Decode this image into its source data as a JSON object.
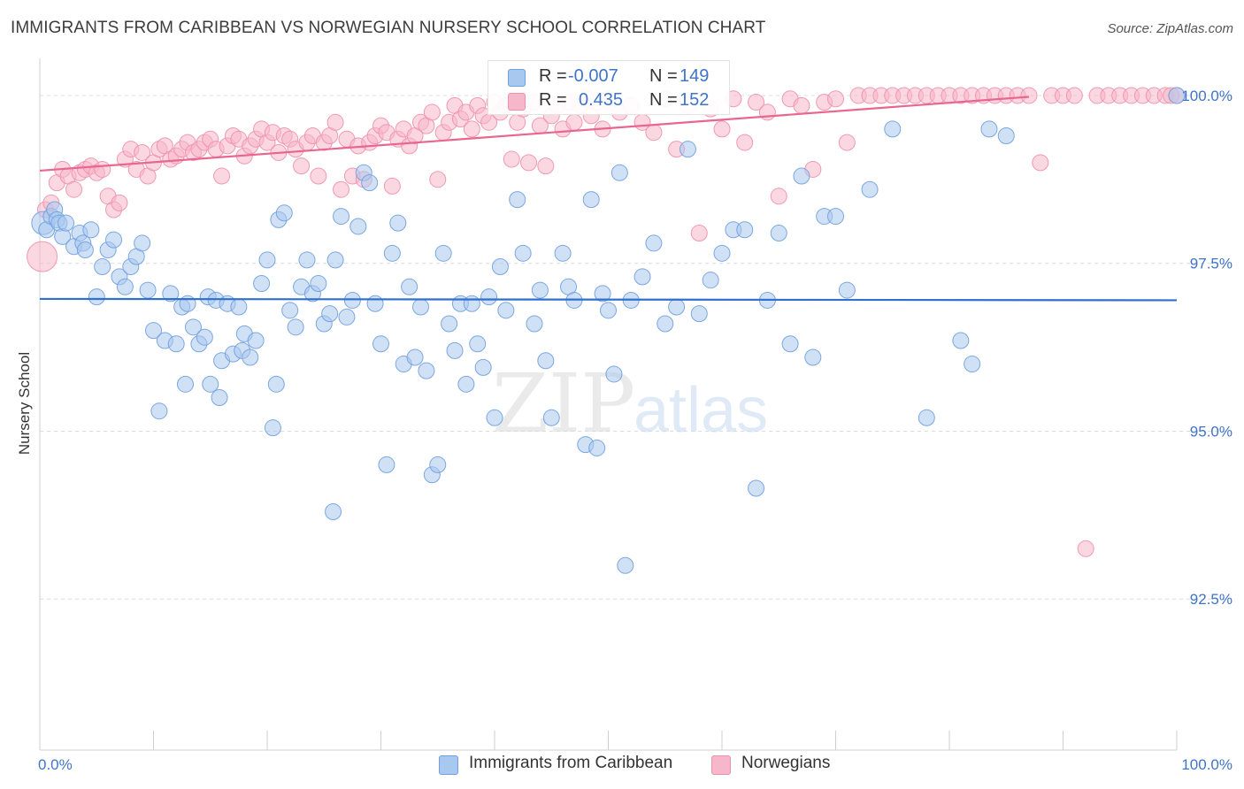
{
  "title": "IMMIGRANTS FROM CARIBBEAN VS NORWEGIAN NURSERY SCHOOL CORRELATION CHART",
  "source": "Source: ZipAtlas.com",
  "watermark": {
    "zip": "ZIP",
    "atlas": "atlas"
  },
  "colors": {
    "blue_fill": "#a9c8ef",
    "blue_stroke": "#6f9fde",
    "blue_line": "#2f6fce",
    "pink_fill": "#f7b7cb",
    "pink_stroke": "#ee90ad",
    "pink_line": "#e8668f",
    "axis_text": "#3f74c8",
    "grid": "#dcdcdc"
  },
  "stats": {
    "blue": {
      "r_label": "R =",
      "r_value": "-0.007",
      "n_label": "N =",
      "n_value": "149"
    },
    "pink": {
      "r_label": "R =",
      "r_value": "0.435",
      "n_label": "N =",
      "n_value": "152"
    }
  },
  "legend": {
    "blue": "Immigrants from Caribbean",
    "pink": "Norwegians"
  },
  "chart_data": {
    "type": "scatter",
    "title": "IMMIGRANTS FROM CARIBBEAN VS NORWEGIAN NURSERY SCHOOL CORRELATION CHART",
    "xlabel": "",
    "ylabel": "Nursery School",
    "xlim": [
      0,
      100
    ],
    "ylim": [
      90.25,
      100.5
    ],
    "x_tick_labels": [
      {
        "value": 0,
        "label": "0.0%"
      },
      {
        "value": 100,
        "label": "100.0%"
      }
    ],
    "y_tick_labels": [
      {
        "value": 100,
        "label": "100.0%"
      },
      {
        "value": 97.5,
        "label": "97.5%"
      },
      {
        "value": 95,
        "label": "95.0%"
      },
      {
        "value": 92.5,
        "label": "92.5%"
      }
    ],
    "legend_position": "bottom",
    "series": [
      {
        "name": "Immigrants from Caribbean",
        "color": "blue",
        "r": -0.007,
        "n": 149,
        "trend": {
          "x": [
            0,
            100
          ],
          "y": [
            96.97,
            96.95
          ]
        },
        "points": [
          [
            0.3,
            98.1
          ],
          [
            0.6,
            98.0
          ],
          [
            1.0,
            98.2
          ],
          [
            1.3,
            98.3
          ],
          [
            1.5,
            98.15
          ],
          [
            1.7,
            98.1
          ],
          [
            2.0,
            97.9
          ],
          [
            2.3,
            98.1
          ],
          [
            3.0,
            97.75
          ],
          [
            3.5,
            97.95
          ],
          [
            3.8,
            97.8
          ],
          [
            4.0,
            97.7
          ],
          [
            4.5,
            98.0
          ],
          [
            5.5,
            97.45
          ],
          [
            6.0,
            97.7
          ],
          [
            6.5,
            97.85
          ],
          [
            5.0,
            97.0
          ],
          [
            7.0,
            97.3
          ],
          [
            7.5,
            97.15
          ],
          [
            8.0,
            97.45
          ],
          [
            8.5,
            97.6
          ],
          [
            9.0,
            97.8
          ],
          [
            9.5,
            97.1
          ],
          [
            10.0,
            96.5
          ],
          [
            10.5,
            95.3
          ],
          [
            11.0,
            96.35
          ],
          [
            11.5,
            97.05
          ],
          [
            12.0,
            96.3
          ],
          [
            12.5,
            96.85
          ],
          [
            12.8,
            95.7
          ],
          [
            13.0,
            96.9
          ],
          [
            13.5,
            96.55
          ],
          [
            14.0,
            96.3
          ],
          [
            14.5,
            96.4
          ],
          [
            14.8,
            97.0
          ],
          [
            15.0,
            95.7
          ],
          [
            15.5,
            96.95
          ],
          [
            15.8,
            95.5
          ],
          [
            16.0,
            96.05
          ],
          [
            16.5,
            96.9
          ],
          [
            17.0,
            96.15
          ],
          [
            17.5,
            96.85
          ],
          [
            17.8,
            96.2
          ],
          [
            18.0,
            96.45
          ],
          [
            18.5,
            96.1
          ],
          [
            19.0,
            96.35
          ],
          [
            19.5,
            97.2
          ],
          [
            20.0,
            97.55
          ],
          [
            20.5,
            95.05
          ],
          [
            20.8,
            95.7
          ],
          [
            21.0,
            98.15
          ],
          [
            21.5,
            98.25
          ],
          [
            22.0,
            96.8
          ],
          [
            22.5,
            96.55
          ],
          [
            23.0,
            97.15
          ],
          [
            23.5,
            97.55
          ],
          [
            24.0,
            97.05
          ],
          [
            24.5,
            97.2
          ],
          [
            25.0,
            96.6
          ],
          [
            25.5,
            96.75
          ],
          [
            25.8,
            93.8
          ],
          [
            26.0,
            97.55
          ],
          [
            26.5,
            98.2
          ],
          [
            27.0,
            96.7
          ],
          [
            27.5,
            96.95
          ],
          [
            28.0,
            98.05
          ],
          [
            28.5,
            98.85
          ],
          [
            29.0,
            98.7
          ],
          [
            29.5,
            96.9
          ],
          [
            30.0,
            96.3
          ],
          [
            30.5,
            94.5
          ],
          [
            31.0,
            97.65
          ],
          [
            31.5,
            98.1
          ],
          [
            32.0,
            96.0
          ],
          [
            32.5,
            97.15
          ],
          [
            33.0,
            96.1
          ],
          [
            33.5,
            96.85
          ],
          [
            34.0,
            95.9
          ],
          [
            34.5,
            94.35
          ],
          [
            35.0,
            94.5
          ],
          [
            35.5,
            97.65
          ],
          [
            36.0,
            96.6
          ],
          [
            36.5,
            96.2
          ],
          [
            37.0,
            96.9
          ],
          [
            37.5,
            95.7
          ],
          [
            38.0,
            96.9
          ],
          [
            38.5,
            96.3
          ],
          [
            39.0,
            95.95
          ],
          [
            39.5,
            97.0
          ],
          [
            40.0,
            95.2
          ],
          [
            40.5,
            97.45
          ],
          [
            41.0,
            96.8
          ],
          [
            42.0,
            98.45
          ],
          [
            42.5,
            97.65
          ],
          [
            43.5,
            96.6
          ],
          [
            44.0,
            97.1
          ],
          [
            44.5,
            96.05
          ],
          [
            45.0,
            95.2
          ],
          [
            46.0,
            97.65
          ],
          [
            46.5,
            97.15
          ],
          [
            47.0,
            96.95
          ],
          [
            48.0,
            94.8
          ],
          [
            48.5,
            98.45
          ],
          [
            49.0,
            94.75
          ],
          [
            49.5,
            97.05
          ],
          [
            50.0,
            96.8
          ],
          [
            50.5,
            95.85
          ],
          [
            51.0,
            98.85
          ],
          [
            51.5,
            93.0
          ],
          [
            52.0,
            96.95
          ],
          [
            53.0,
            97.3
          ],
          [
            54.0,
            97.8
          ],
          [
            55.0,
            96.6
          ],
          [
            56.0,
            96.85
          ],
          [
            57.0,
            99.2
          ],
          [
            58.0,
            96.75
          ],
          [
            59.0,
            97.25
          ],
          [
            60.0,
            97.65
          ],
          [
            61.0,
            98.0
          ],
          [
            62.0,
            98.0
          ],
          [
            63.0,
            94.15
          ],
          [
            64.0,
            96.95
          ],
          [
            65.0,
            97.95
          ],
          [
            66.0,
            96.3
          ],
          [
            67.0,
            98.8
          ],
          [
            68.0,
            96.1
          ],
          [
            69.0,
            98.2
          ],
          [
            70.0,
            98.2
          ],
          [
            71.0,
            97.1
          ],
          [
            73.0,
            98.6
          ],
          [
            75.0,
            99.5
          ],
          [
            78.0,
            95.2
          ],
          [
            81.0,
            96.35
          ],
          [
            82.0,
            96.0
          ],
          [
            83.5,
            99.5
          ],
          [
            85.0,
            99.4
          ],
          [
            100.0,
            100.0
          ]
        ]
      },
      {
        "name": "Norwegians",
        "color": "pink",
        "r": 0.435,
        "n": 152,
        "trend": {
          "x": [
            0,
            87
          ],
          "y": [
            98.88,
            99.98
          ]
        },
        "points": [
          [
            0.2,
            97.6
          ],
          [
            0.5,
            98.3
          ],
          [
            1.0,
            98.4
          ],
          [
            1.5,
            98.7
          ],
          [
            2.0,
            98.9
          ],
          [
            2.5,
            98.8
          ],
          [
            3.0,
            98.6
          ],
          [
            3.5,
            98.85
          ],
          [
            4.0,
            98.9
          ],
          [
            4.5,
            98.95
          ],
          [
            5.0,
            98.85
          ],
          [
            5.5,
            98.9
          ],
          [
            6.0,
            98.5
          ],
          [
            6.5,
            98.3
          ],
          [
            7.0,
            98.4
          ],
          [
            7.5,
            99.05
          ],
          [
            8.0,
            99.2
          ],
          [
            8.5,
            98.9
          ],
          [
            9.0,
            99.15
          ],
          [
            9.5,
            98.8
          ],
          [
            10.0,
            99.0
          ],
          [
            10.5,
            99.2
          ],
          [
            11.0,
            99.25
          ],
          [
            11.5,
            99.05
          ],
          [
            12.0,
            99.1
          ],
          [
            12.5,
            99.2
          ],
          [
            13.0,
            99.3
          ],
          [
            13.5,
            99.15
          ],
          [
            14.0,
            99.2
          ],
          [
            14.5,
            99.3
          ],
          [
            15.0,
            99.35
          ],
          [
            15.5,
            99.2
          ],
          [
            16.0,
            98.8
          ],
          [
            16.5,
            99.25
          ],
          [
            17.0,
            99.4
          ],
          [
            17.5,
            99.35
          ],
          [
            18.0,
            99.1
          ],
          [
            18.5,
            99.25
          ],
          [
            19.0,
            99.35
          ],
          [
            19.5,
            99.5
          ],
          [
            20.0,
            99.3
          ],
          [
            20.5,
            99.45
          ],
          [
            21.0,
            99.15
          ],
          [
            21.5,
            99.4
          ],
          [
            22.0,
            99.35
          ],
          [
            22.5,
            99.2
          ],
          [
            23.0,
            98.95
          ],
          [
            23.5,
            99.3
          ],
          [
            24.0,
            99.4
          ],
          [
            24.5,
            98.8
          ],
          [
            25.0,
            99.3
          ],
          [
            25.5,
            99.4
          ],
          [
            26.0,
            99.6
          ],
          [
            26.5,
            98.6
          ],
          [
            27.0,
            99.35
          ],
          [
            27.5,
            98.8
          ],
          [
            28.0,
            99.25
          ],
          [
            28.5,
            98.75
          ],
          [
            29.0,
            99.3
          ],
          [
            29.5,
            99.4
          ],
          [
            30.0,
            99.55
          ],
          [
            30.5,
            99.45
          ],
          [
            31.0,
            98.65
          ],
          [
            31.5,
            99.35
          ],
          [
            32.0,
            99.5
          ],
          [
            32.5,
            99.25
          ],
          [
            33.0,
            99.4
          ],
          [
            33.5,
            99.6
          ],
          [
            34.0,
            99.55
          ],
          [
            34.5,
            99.75
          ],
          [
            35.0,
            98.75
          ],
          [
            35.5,
            99.45
          ],
          [
            36.0,
            99.6
          ],
          [
            36.5,
            99.85
          ],
          [
            37.0,
            99.65
          ],
          [
            37.5,
            99.75
          ],
          [
            38.0,
            99.5
          ],
          [
            38.5,
            99.85
          ],
          [
            39.0,
            99.7
          ],
          [
            39.5,
            99.6
          ],
          [
            40.0,
            99.9
          ],
          [
            40.5,
            99.75
          ],
          [
            41.0,
            99.85
          ],
          [
            41.5,
            99.05
          ],
          [
            42.0,
            99.6
          ],
          [
            42.5,
            99.8
          ],
          [
            43.0,
            99.0
          ],
          [
            43.5,
            99.9
          ],
          [
            44.0,
            99.55
          ],
          [
            44.5,
            98.95
          ],
          [
            45.0,
            99.7
          ],
          [
            45.5,
            99.85
          ],
          [
            46.0,
            99.5
          ],
          [
            46.5,
            99.9
          ],
          [
            47.0,
            99.6
          ],
          [
            47.5,
            99.85
          ],
          [
            48.0,
            99.95
          ],
          [
            48.5,
            99.7
          ],
          [
            49.0,
            99.9
          ],
          [
            49.5,
            99.5
          ],
          [
            50.0,
            99.95
          ],
          [
            51.0,
            99.75
          ],
          [
            52.0,
            99.85
          ],
          [
            53.0,
            99.6
          ],
          [
            54.0,
            99.45
          ],
          [
            55.0,
            99.95
          ],
          [
            56.0,
            99.2
          ],
          [
            57.0,
            99.85
          ],
          [
            58.0,
            97.95
          ],
          [
            59.0,
            99.8
          ],
          [
            60.0,
            99.5
          ],
          [
            61.0,
            99.95
          ],
          [
            62.0,
            99.3
          ],
          [
            63.0,
            99.9
          ],
          [
            64.0,
            99.75
          ],
          [
            65.0,
            98.5
          ],
          [
            66.0,
            99.95
          ],
          [
            67.0,
            99.85
          ],
          [
            68.0,
            98.9
          ],
          [
            69.0,
            99.9
          ],
          [
            70.0,
            99.95
          ],
          [
            71.0,
            99.3
          ],
          [
            72.0,
            100.0
          ],
          [
            73.0,
            100.0
          ],
          [
            74.0,
            100.0
          ],
          [
            75.0,
            100.0
          ],
          [
            76.0,
            100.0
          ],
          [
            77.0,
            100.0
          ],
          [
            78.0,
            100.0
          ],
          [
            79.0,
            100.0
          ],
          [
            80.0,
            100.0
          ],
          [
            81.0,
            100.0
          ],
          [
            82.0,
            100.0
          ],
          [
            83.0,
            100.0
          ],
          [
            84.0,
            100.0
          ],
          [
            85.0,
            100.0
          ],
          [
            86.0,
            100.0
          ],
          [
            87.0,
            100.0
          ],
          [
            88.0,
            99.0
          ],
          [
            89.0,
            100.0
          ],
          [
            90.0,
            100.0
          ],
          [
            91.0,
            100.0
          ],
          [
            92.0,
            93.25
          ],
          [
            93.0,
            100.0
          ],
          [
            94.0,
            100.0
          ],
          [
            95.0,
            100.0
          ],
          [
            96.0,
            100.0
          ],
          [
            97.0,
            100.0
          ],
          [
            98.0,
            100.0
          ],
          [
            99.0,
            100.0
          ],
          [
            99.5,
            100.0
          ],
          [
            100.0,
            100.0
          ]
        ]
      }
    ]
  }
}
